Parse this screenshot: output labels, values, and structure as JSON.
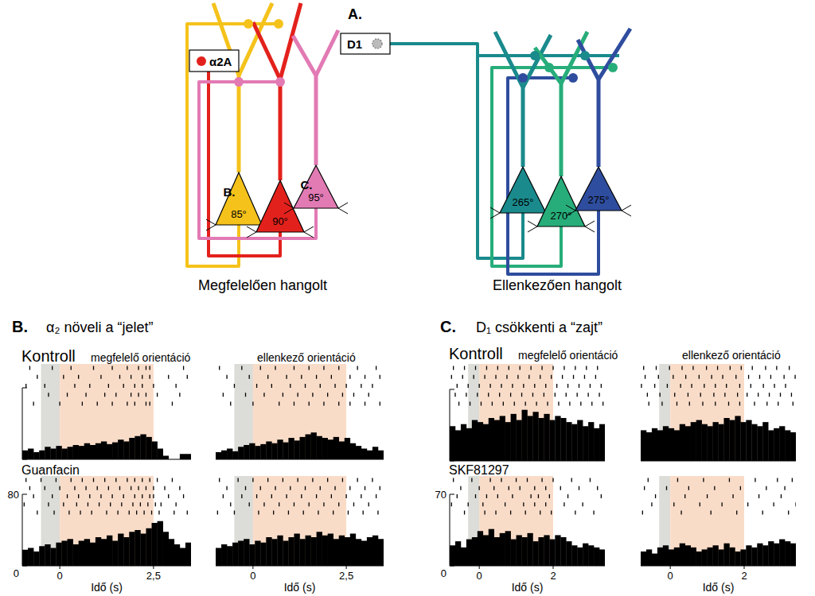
{
  "diagram": {
    "panel_label": "A.",
    "groups": [
      {
        "label": "Megfelelően hangolt",
        "neurons": [
          {
            "label": "85°",
            "marker": "B.",
            "color": "#f5c21b"
          },
          {
            "label": "90°",
            "color": "#e3211c"
          },
          {
            "label": "95°",
            "marker": "C.",
            "color": "#e27ab4"
          }
        ]
      },
      {
        "label": "Ellenkezően hangolt",
        "neurons": [
          {
            "label": "265°",
            "color": "#1a8a8c"
          },
          {
            "label": "270°",
            "color": "#27ad7a"
          },
          {
            "label": "275°",
            "color": "#2f4d9e"
          }
        ]
      }
    ],
    "receptors": [
      {
        "label": "α2A",
        "color": "#e3211c"
      },
      {
        "label": "D1",
        "color": "#888888"
      }
    ]
  },
  "panels": [
    {
      "label": "B.",
      "title": "α₂ növeli a “jelet”"
    },
    {
      "label": "C.",
      "title": "D₁ csökkenti a “zajt”"
    }
  ],
  "chart_data": [
    {
      "type": "histogram",
      "title": "Kontroll",
      "subtitle": "megfelelő orientáció",
      "color": "#000000",
      "xlim": [
        -1,
        3.5
      ],
      "ylim": [
        0,
        80
      ],
      "yticks": [
        0,
        80
      ],
      "tick_labels": false,
      "bins": [
        -1,
        -0.85,
        -0.7,
        -0.55,
        -0.4,
        -0.25,
        -0.1,
        0.05,
        0.2,
        0.35,
        0.5,
        0.65,
        0.8,
        0.95,
        1.1,
        1.25,
        1.4,
        1.55,
        1.7,
        1.85,
        2,
        2.15,
        2.3,
        2.45,
        2.6,
        2.75,
        2.9,
        3.05,
        3.2,
        3.35,
        3.5
      ],
      "values": [
        10,
        12,
        8,
        10,
        14,
        12,
        15,
        12,
        14,
        16,
        15,
        18,
        16,
        18,
        20,
        17,
        19,
        22,
        20,
        24,
        26,
        28,
        25,
        20,
        12,
        4,
        0,
        0,
        6,
        6
      ],
      "periods": [
        {
          "start": -0.5,
          "end": 0,
          "color": "#dcdcd8"
        },
        {
          "start": 0,
          "end": 2.5,
          "color": "#f9dcc8"
        }
      ],
      "raster": [
        [
          -0.8,
          -0.2,
          0.3,
          0.9,
          1.4,
          1.8,
          2.1,
          2.3,
          2.4,
          3.3
        ],
        [
          -0.6,
          0.1,
          0.5,
          1.1,
          1.6,
          1.9,
          2.2,
          2.4,
          2.9,
          3.4
        ],
        [
          -0.9,
          -0.4,
          0.4,
          0.8,
          1.3,
          1.7,
          2.0,
          2.2,
          2.5,
          3.1
        ],
        [
          -0.3,
          0.2,
          0.7,
          1.2,
          1.5,
          1.9,
          2.1,
          2.3,
          2.6,
          3.2
        ],
        [
          -0.7,
          0.0,
          0.6,
          1.0,
          1.4,
          1.8,
          2.0,
          2.3,
          2.4,
          3.0
        ]
      ]
    },
    {
      "type": "histogram",
      "subtitle": "ellenkező orientáció",
      "color": "#000000",
      "xlim": [
        -1,
        3.5
      ],
      "ylim": [
        0,
        80
      ],
      "tick_labels": false,
      "bins": [
        -1,
        -0.85,
        -0.7,
        -0.55,
        -0.4,
        -0.25,
        -0.1,
        0.05,
        0.2,
        0.35,
        0.5,
        0.65,
        0.8,
        0.95,
        1.1,
        1.25,
        1.4,
        1.55,
        1.7,
        1.85,
        2,
        2.15,
        2.3,
        2.45,
        2.6,
        2.75,
        2.9,
        3.05,
        3.2,
        3.35,
        3.5
      ],
      "values": [
        8,
        10,
        12,
        9,
        14,
        16,
        18,
        15,
        17,
        20,
        18,
        22,
        19,
        24,
        21,
        25,
        28,
        30,
        26,
        24,
        22,
        25,
        20,
        24,
        18,
        15,
        12,
        10,
        14,
        10
      ],
      "periods": [
        {
          "start": -0.5,
          "end": 0,
          "color": "#dcdcd8"
        },
        {
          "start": 0,
          "end": 2.5,
          "color": "#f9dcc8"
        }
      ],
      "raster": [
        [
          -0.9,
          -0.3,
          0.2,
          0.6,
          1.1,
          1.5,
          1.9,
          2.3,
          2.8,
          3.3
        ],
        [
          -0.7,
          -0.1,
          0.4,
          0.9,
          1.3,
          1.7,
          2.1,
          2.6,
          3.0,
          3.4
        ],
        [
          -0.5,
          0.1,
          0.5,
          1.0,
          1.4,
          1.8,
          2.2,
          2.5,
          2.9,
          3.2
        ],
        [
          -0.8,
          -0.2,
          0.3,
          0.8,
          1.2,
          1.6,
          2.0,
          2.4,
          2.7,
          3.1
        ],
        [
          -0.6,
          0.0,
          0.7,
          1.1,
          1.5,
          1.9,
          2.3,
          2.6,
          3.0,
          3.4
        ]
      ]
    },
    {
      "type": "histogram",
      "title": "Guanfacin",
      "x_label": "Idő (s)",
      "color": "#000000",
      "xlim": [
        -1,
        3.5
      ],
      "ylim": [
        0,
        80
      ],
      "xticks": [
        0,
        {
          "value": 2.5,
          "label": "2,5"
        }
      ],
      "yticks": [
        0,
        80
      ],
      "tick_labels": true,
      "bins": [
        -1,
        -0.85,
        -0.7,
        -0.55,
        -0.4,
        -0.25,
        -0.1,
        0.05,
        0.2,
        0.35,
        0.5,
        0.65,
        0.8,
        0.95,
        1.1,
        1.25,
        1.4,
        1.55,
        1.7,
        1.85,
        2,
        2.15,
        2.3,
        2.45,
        2.6,
        2.75,
        2.9,
        3.05,
        3.2,
        3.35,
        3.5
      ],
      "values": [
        18,
        20,
        16,
        22,
        24,
        20,
        26,
        28,
        30,
        24,
        28,
        30,
        26,
        32,
        30,
        34,
        28,
        36,
        32,
        38,
        40,
        36,
        42,
        48,
        50,
        38,
        30,
        24,
        20,
        26
      ],
      "periods": [
        {
          "start": -0.5,
          "end": 0,
          "color": "#dcdcd8"
        },
        {
          "start": 0,
          "end": 2.5,
          "color": "#f9dcc8"
        }
      ],
      "raster": [
        [
          -0.9,
          -0.5,
          -0.1,
          0.3,
          0.6,
          0.9,
          1.2,
          1.5,
          1.8,
          2.0,
          2.2,
          2.4,
          2.6,
          3.0
        ],
        [
          -0.8,
          -0.4,
          0.0,
          0.4,
          0.7,
          1.0,
          1.3,
          1.6,
          1.9,
          2.1,
          2.3,
          2.5,
          2.8,
          3.2
        ],
        [
          -0.7,
          -0.2,
          0.2,
          0.5,
          0.8,
          1.1,
          1.4,
          1.7,
          2.0,
          2.2,
          2.4,
          2.5,
          2.9,
          3.3
        ],
        [
          -0.95,
          -0.3,
          0.1,
          0.45,
          0.75,
          1.05,
          1.35,
          1.65,
          1.95,
          2.15,
          2.35,
          2.55,
          2.7,
          3.1
        ],
        [
          -0.6,
          -0.15,
          0.25,
          0.55,
          0.85,
          1.25,
          1.55,
          1.85,
          2.05,
          2.25,
          2.45,
          2.65,
          3.05,
          3.4
        ]
      ]
    },
    {
      "type": "histogram",
      "x_label": "Idő (s)",
      "color": "#000000",
      "xlim": [
        -1,
        3.5
      ],
      "ylim": [
        0,
        80
      ],
      "xticks": [
        0,
        {
          "value": 2.5,
          "label": "2,5"
        }
      ],
      "tick_labels": "x",
      "bins": [
        -1,
        -0.85,
        -0.7,
        -0.55,
        -0.4,
        -0.25,
        -0.1,
        0.05,
        0.2,
        0.35,
        0.5,
        0.65,
        0.8,
        0.95,
        1.1,
        1.25,
        1.4,
        1.55,
        1.7,
        1.85,
        2,
        2.15,
        2.3,
        2.45,
        2.6,
        2.75,
        2.9,
        3.05,
        3.2,
        3.35,
        3.5
      ],
      "values": [
        20,
        24,
        22,
        26,
        28,
        30,
        24,
        28,
        26,
        32,
        30,
        34,
        28,
        32,
        36,
        30,
        34,
        32,
        38,
        34,
        36,
        30,
        34,
        32,
        36,
        30,
        28,
        32,
        34,
        30
      ],
      "periods": [
        {
          "start": -0.5,
          "end": 0,
          "color": "#dcdcd8"
        },
        {
          "start": 0,
          "end": 2.5,
          "color": "#f9dcc8"
        }
      ],
      "raster": [
        [
          -0.9,
          -0.4,
          0.0,
          0.4,
          0.8,
          1.2,
          1.6,
          2.0,
          2.4,
          2.8,
          3.2
        ],
        [
          -0.7,
          -0.2,
          0.2,
          0.6,
          1.0,
          1.4,
          1.8,
          2.2,
          2.6,
          3.0,
          3.4
        ],
        [
          -0.8,
          -0.3,
          0.1,
          0.5,
          0.9,
          1.3,
          1.7,
          2.1,
          2.5,
          2.9,
          3.3
        ],
        [
          -0.6,
          -0.1,
          0.3,
          0.7,
          1.1,
          1.5,
          1.9,
          2.3,
          2.7,
          3.1
        ],
        [
          -0.95,
          -0.5,
          0.15,
          0.55,
          0.95,
          1.35,
          1.75,
          2.15,
          2.55,
          2.95,
          3.35
        ]
      ]
    },
    {
      "type": "histogram",
      "title": "Kontroll",
      "subtitle": "megfelelő orientáció",
      "color": "#000000",
      "xlim": [
        -0.8,
        3.4
      ],
      "ylim": [
        0,
        70
      ],
      "yticks": [
        0,
        70
      ],
      "tick_labels": false,
      "bins": [
        -0.8,
        -0.65,
        -0.5,
        -0.35,
        -0.2,
        -0.05,
        0.1,
        0.25,
        0.4,
        0.55,
        0.7,
        0.85,
        1,
        1.15,
        1.3,
        1.45,
        1.6,
        1.75,
        1.9,
        2.05,
        2.2,
        2.35,
        2.5,
        2.65,
        2.8,
        2.95,
        3.1,
        3.25,
        3.4
      ],
      "values": [
        34,
        30,
        36,
        32,
        40,
        38,
        36,
        42,
        40,
        44,
        38,
        46,
        40,
        50,
        44,
        48,
        42,
        46,
        40,
        44,
        42,
        38,
        36,
        40,
        34,
        38,
        32,
        36
      ],
      "periods": [
        {
          "start": -0.3,
          "end": 0,
          "color": "#dcdcd8"
        },
        {
          "start": 0,
          "end": 2,
          "color": "#f9dcc8"
        }
      ],
      "raster": [
        [
          -0.7,
          -0.4,
          -0.1,
          0.2,
          0.5,
          0.8,
          1.1,
          1.4,
          1.7,
          2.0,
          2.3,
          2.6,
          2.9,
          3.2
        ],
        [
          -0.75,
          -0.45,
          -0.15,
          0.15,
          0.45,
          0.75,
          1.05,
          1.35,
          1.65,
          1.95,
          2.25,
          2.55,
          2.85,
          3.15
        ],
        [
          -0.6,
          -0.3,
          0.0,
          0.3,
          0.6,
          0.9,
          1.2,
          1.5,
          1.8,
          2.1,
          2.4,
          2.7,
          3.0,
          3.3
        ],
        [
          -0.65,
          -0.35,
          -0.05,
          0.25,
          0.55,
          0.85,
          1.15,
          1.45,
          1.75,
          2.05,
          2.35,
          2.65,
          2.95,
          3.25
        ],
        [
          -0.55,
          -0.25,
          0.05,
          0.35,
          0.65,
          0.95,
          1.25,
          1.55,
          1.85,
          2.15,
          2.45,
          2.75,
          3.05,
          3.35
        ]
      ]
    },
    {
      "type": "histogram",
      "subtitle": "ellenkező orientáció",
      "color": "#000000",
      "xlim": [
        -0.8,
        3.4
      ],
      "ylim": [
        0,
        70
      ],
      "tick_labels": false,
      "bins": [
        -0.8,
        -0.65,
        -0.5,
        -0.35,
        -0.2,
        -0.05,
        0.1,
        0.25,
        0.4,
        0.55,
        0.7,
        0.85,
        1,
        1.15,
        1.3,
        1.45,
        1.6,
        1.75,
        1.9,
        2.05,
        2.2,
        2.35,
        2.5,
        2.65,
        2.8,
        2.95,
        3.1,
        3.25,
        3.4
      ],
      "values": [
        30,
        28,
        32,
        30,
        34,
        32,
        30,
        36,
        34,
        38,
        40,
        36,
        34,
        38,
        36,
        42,
        40,
        44,
        38,
        40,
        36,
        34,
        38,
        30,
        32,
        34,
        30,
        28
      ],
      "periods": [
        {
          "start": -0.3,
          "end": 0,
          "color": "#dcdcd8"
        },
        {
          "start": 0,
          "end": 2,
          "color": "#f9dcc8"
        }
      ],
      "raster": [
        [
          -0.72,
          -0.38,
          -0.02,
          0.32,
          0.62,
          0.98,
          1.28,
          1.62,
          1.92,
          2.22,
          2.58,
          2.88,
          3.22
        ],
        [
          -0.68,
          -0.32,
          0.08,
          0.42,
          0.78,
          1.12,
          1.42,
          1.78,
          2.12,
          2.42,
          2.72,
          3.08,
          3.38
        ],
        [
          -0.78,
          -0.42,
          -0.08,
          0.28,
          0.58,
          0.92,
          1.22,
          1.52,
          1.88,
          2.18,
          2.52,
          2.82,
          3.12
        ],
        [
          -0.62,
          -0.28,
          0.12,
          0.48,
          0.82,
          1.18,
          1.48,
          1.82,
          2.08,
          2.38,
          2.68,
          2.98,
          3.28
        ],
        [
          -0.58,
          -0.22,
          0.18,
          0.52,
          0.88,
          1.22,
          1.58,
          1.88,
          2.28,
          2.62,
          2.92,
          3.32
        ]
      ]
    },
    {
      "type": "histogram",
      "title": "SKF81297",
      "x_label": "Idő (s)",
      "color": "#000000",
      "xlim": [
        -0.8,
        3.4
      ],
      "ylim": [
        0,
        70
      ],
      "xticks": [
        0,
        2
      ],
      "yticks": [
        0,
        70
      ],
      "tick_labels": true,
      "bins": [
        -0.8,
        -0.65,
        -0.5,
        -0.35,
        -0.2,
        -0.05,
        0.1,
        0.25,
        0.4,
        0.55,
        0.7,
        0.85,
        1,
        1.15,
        1.3,
        1.45,
        1.6,
        1.75,
        1.9,
        2.05,
        2.2,
        2.35,
        2.5,
        2.65,
        2.8,
        2.95,
        3.1,
        3.25,
        3.4
      ],
      "values": [
        20,
        24,
        18,
        26,
        28,
        34,
        30,
        36,
        28,
        32,
        34,
        26,
        30,
        28,
        32,
        24,
        28,
        30,
        26,
        30,
        28,
        24,
        20,
        18,
        22,
        20,
        18,
        16
      ],
      "periods": [
        {
          "start": -0.3,
          "end": 0,
          "color": "#dcdcd8"
        },
        {
          "start": 0,
          "end": 2,
          "color": "#f9dcc8"
        }
      ],
      "raster": [
        [
          -0.7,
          -0.2,
          0.3,
          0.6,
          1.0,
          1.3,
          1.7,
          2.0,
          2.5,
          3.0
        ],
        [
          -0.5,
          0.0,
          0.4,
          0.8,
          1.1,
          1.5,
          1.8,
          2.2,
          2.7,
          3.2
        ],
        [
          -0.6,
          -0.1,
          0.2,
          0.5,
          0.9,
          1.4,
          1.6,
          1.9,
          2.4,
          3.3
        ],
        [
          -0.75,
          -0.3,
          0.1,
          0.7,
          1.2,
          1.5,
          1.8,
          2.3,
          2.8
        ],
        [
          -0.4,
          0.15,
          0.45,
          0.85,
          1.25,
          1.65,
          1.95,
          2.6,
          3.1
        ]
      ]
    },
    {
      "type": "histogram",
      "x_label": "Idő (s)",
      "color": "#000000",
      "xlim": [
        -0.8,
        3.4
      ],
      "ylim": [
        0,
        70
      ],
      "xticks": [
        0,
        2
      ],
      "tick_labels": "x",
      "bins": [
        -0.8,
        -0.65,
        -0.5,
        -0.35,
        -0.2,
        -0.05,
        0.1,
        0.25,
        0.4,
        0.55,
        0.7,
        0.85,
        1,
        1.15,
        1.3,
        1.45,
        1.6,
        1.75,
        1.9,
        2.05,
        2.2,
        2.35,
        2.5,
        2.65,
        2.8,
        2.95,
        3.1,
        3.25,
        3.4
      ],
      "values": [
        14,
        16,
        12,
        18,
        20,
        16,
        18,
        22,
        20,
        18,
        14,
        16,
        18,
        20,
        16,
        22,
        18,
        14,
        16,
        20,
        18,
        22,
        20,
        24,
        22,
        26,
        24,
        22
      ],
      "periods": [
        {
          "start": -0.3,
          "end": 0,
          "color": "#dcdcd8"
        },
        {
          "start": 0,
          "end": 2,
          "color": "#f9dcc8"
        }
      ],
      "raster": [
        [
          -0.6,
          0.2,
          0.9,
          1.6,
          2.3,
          2.9,
          3.3
        ],
        [
          -0.7,
          -0.1,
          0.5,
          1.2,
          1.9,
          2.6,
          3.1
        ],
        [
          -0.4,
          0.4,
          1.0,
          1.7,
          2.4,
          3.0
        ],
        [
          -0.5,
          0.1,
          0.8,
          1.4,
          2.1,
          2.8,
          3.4
        ],
        [
          -0.75,
          0.3,
          1.1,
          1.8,
          2.5,
          3.2
        ]
      ]
    }
  ]
}
